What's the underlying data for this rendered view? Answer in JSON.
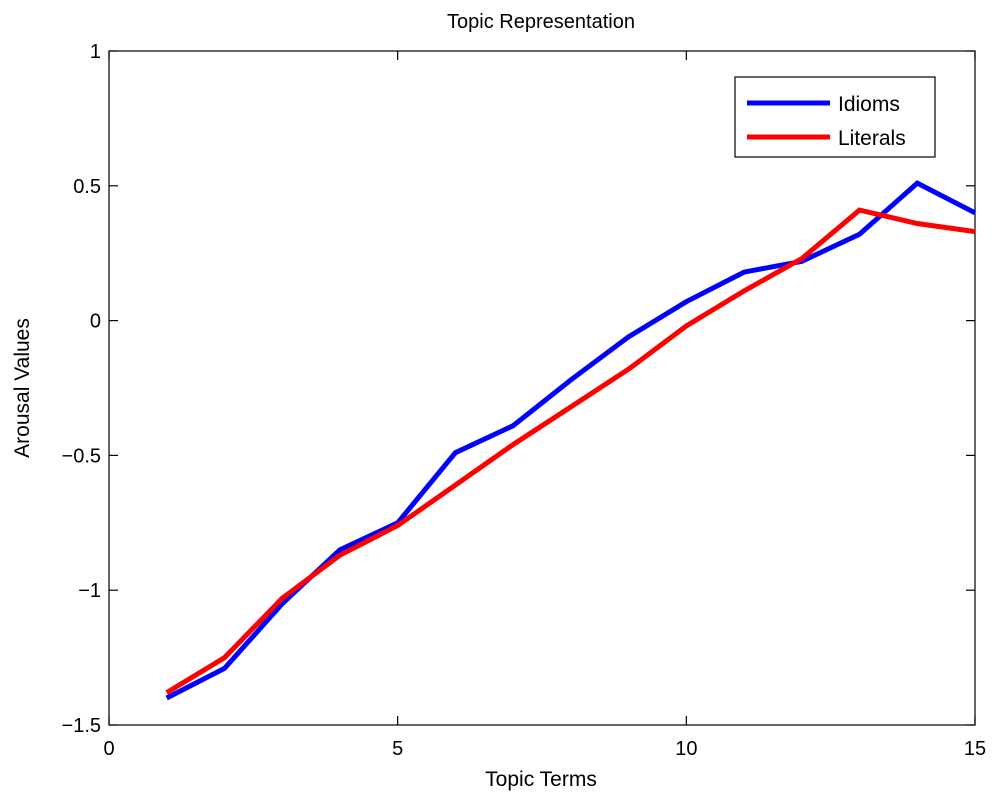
{
  "chart_data": {
    "type": "line",
    "title": "Topic Representation",
    "xlabel": "Topic Terms",
    "ylabel": "Arousal Values",
    "xlim": [
      0,
      15
    ],
    "ylim": [
      -1.5,
      1
    ],
    "xticks": [
      0,
      5,
      10,
      15
    ],
    "xtick_labels": [
      "0",
      "5",
      "10",
      "15"
    ],
    "yticks": [
      -1.5,
      -1,
      -0.5,
      0,
      0.5,
      1
    ],
    "ytick_labels": [
      "−1.5",
      "−1",
      "−0.5",
      "0",
      "0.5",
      "1"
    ],
    "grid": false,
    "legend_position": "top-right",
    "x": [
      1,
      2,
      3,
      4,
      5,
      6,
      7,
      8,
      9,
      10,
      11,
      12,
      13,
      14,
      15
    ],
    "series": [
      {
        "name": "Idioms",
        "color": "#0000ff",
        "values": [
          -1.4,
          -1.29,
          -1.05,
          -0.85,
          -0.75,
          -0.49,
          -0.39,
          -0.22,
          -0.06,
          0.07,
          0.18,
          0.22,
          0.32,
          0.51,
          0.4
        ]
      },
      {
        "name": "Literals",
        "color": "#ff0000",
        "values": [
          -1.38,
          -1.25,
          -1.03,
          -0.87,
          -0.76,
          -0.61,
          -0.46,
          -0.32,
          -0.18,
          -0.02,
          0.11,
          0.23,
          0.41,
          0.36,
          0.33
        ]
      }
    ]
  }
}
